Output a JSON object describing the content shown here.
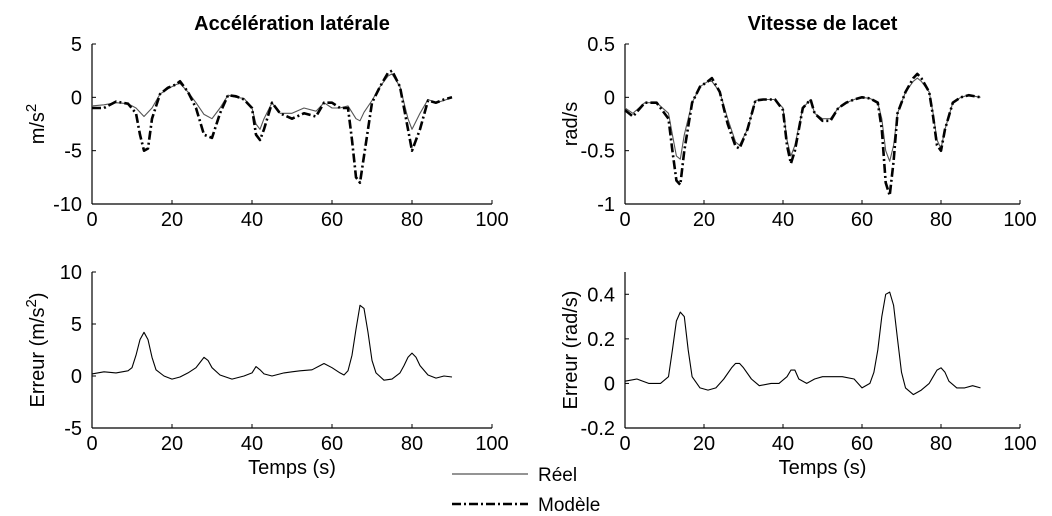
{
  "chart_data": [
    {
      "type": "line",
      "title": "Accélération latérale",
      "xlabel": "",
      "ylabel": "m/s",
      "ylabel_sup": "2",
      "xlim": [
        0,
        100
      ],
      "ylim": [
        -10,
        5
      ],
      "xticks": [
        0,
        20,
        40,
        60,
        80,
        100
      ],
      "yticks": [
        -10,
        -5,
        0,
        5
      ],
      "series": [
        {
          "name": "Réel",
          "style": "solid",
          "color": "#555555",
          "x": [
            0,
            3,
            6,
            9,
            11,
            13,
            15,
            17,
            19,
            21,
            22,
            24,
            26,
            28,
            30,
            32,
            34,
            36,
            38,
            40,
            41,
            42,
            43,
            45,
            47,
            50,
            53,
            56,
            58,
            60,
            62,
            64,
            65,
            66,
            67,
            68,
            70,
            72,
            74,
            75,
            77,
            79,
            80,
            82,
            84,
            86,
            88,
            90
          ],
          "y": [
            -0.8,
            -0.7,
            -0.5,
            -0.6,
            -1.0,
            -1.8,
            -1.0,
            0.3,
            0.8,
            1.2,
            1.3,
            0.5,
            -0.5,
            -1.6,
            -2.0,
            -1.0,
            0.2,
            0.0,
            -0.1,
            -1.0,
            -2.5,
            -3.0,
            -2.0,
            -0.5,
            -1.5,
            -1.5,
            -1.0,
            -1.3,
            -0.5,
            -1.0,
            -1.0,
            -0.8,
            -1.4,
            -2.0,
            -2.2,
            -1.4,
            -0.3,
            1.0,
            2.0,
            2.2,
            1.0,
            -2.0,
            -3.0,
            -1.5,
            -0.2,
            -0.5,
            -0.3,
            0.0
          ]
        },
        {
          "name": "Modèle",
          "style": "dashdot",
          "color": "#000000",
          "x": [
            0,
            3,
            6,
            9,
            11,
            12,
            13,
            14,
            15,
            17,
            19,
            21,
            22,
            24,
            26,
            28,
            30,
            32,
            34,
            36,
            38,
            40,
            41,
            42,
            43,
            45,
            47,
            50,
            53,
            56,
            58,
            60,
            62,
            64,
            65,
            66,
            67,
            68,
            70,
            72,
            74,
            75,
            77,
            79,
            80,
            82,
            84,
            86,
            88,
            90
          ],
          "y": [
            -1.0,
            -1.0,
            -0.4,
            -0.6,
            -1.5,
            -3.5,
            -5.0,
            -4.8,
            -2.0,
            0.3,
            0.9,
            1.2,
            1.5,
            0.5,
            -1.0,
            -3.5,
            -3.8,
            -1.5,
            0.2,
            0.1,
            -0.2,
            -1.0,
            -3.5,
            -4.0,
            -3.0,
            -0.5,
            -1.5,
            -2.0,
            -1.5,
            -1.8,
            -0.5,
            -0.5,
            -1.0,
            -1.0,
            -4.0,
            -7.5,
            -8.0,
            -5.5,
            -0.5,
            1.0,
            2.3,
            2.5,
            1.0,
            -3.0,
            -5.0,
            -3.0,
            -0.3,
            -0.5,
            -0.2,
            0.0
          ]
        }
      ]
    },
    {
      "type": "line",
      "title": "Vitesse de lacet",
      "xlabel": "",
      "ylabel": "rad/s",
      "xlim": [
        0,
        100
      ],
      "ylim": [
        -1,
        0.5
      ],
      "xticks": [
        0,
        20,
        40,
        60,
        80,
        100
      ],
      "yticks": [
        -1,
        -0.5,
        0,
        0.5
      ],
      "ytick_labels": [
        "-1",
        "-0.5",
        "0",
        "0.5"
      ],
      "series": [
        {
          "name": "Réel",
          "style": "solid",
          "color": "#555555",
          "x": [
            0,
            2,
            5,
            8,
            11,
            12,
            13,
            14,
            15,
            17,
            19,
            21,
            22,
            24,
            26,
            28,
            29,
            31,
            33,
            35,
            38,
            40,
            41,
            42,
            43,
            45,
            47,
            48,
            50,
            52,
            54,
            56,
            58,
            60,
            62,
            64,
            65,
            66,
            67,
            68,
            69,
            71,
            73,
            74,
            75,
            77,
            78,
            79,
            80,
            81,
            83,
            85,
            87,
            90
          ],
          "y": [
            -0.1,
            -0.15,
            -0.05,
            -0.05,
            -0.15,
            -0.35,
            -0.55,
            -0.58,
            -0.35,
            -0.05,
            0.1,
            0.15,
            0.15,
            0.05,
            -0.2,
            -0.42,
            -0.45,
            -0.3,
            -0.03,
            -0.02,
            -0.02,
            -0.1,
            -0.4,
            -0.55,
            -0.45,
            -0.1,
            -0.02,
            -0.15,
            -0.2,
            -0.2,
            -0.1,
            -0.05,
            -0.02,
            0.0,
            -0.01,
            -0.05,
            -0.2,
            -0.5,
            -0.6,
            -0.45,
            -0.15,
            0.05,
            0.15,
            0.18,
            0.15,
            0.05,
            -0.15,
            -0.4,
            -0.48,
            -0.3,
            -0.05,
            0.0,
            0.02,
            0.0
          ]
        },
        {
          "name": "Modèle",
          "style": "dashdot",
          "color": "#000000",
          "x": [
            0,
            2,
            5,
            8,
            11,
            12,
            13,
            14,
            15,
            17,
            19,
            21,
            22,
            24,
            26,
            28,
            29,
            31,
            33,
            35,
            38,
            40,
            41,
            42,
            43,
            45,
            47,
            48,
            50,
            52,
            54,
            56,
            58,
            60,
            62,
            64,
            65,
            66,
            67,
            68,
            69,
            71,
            73,
            74,
            75,
            77,
            78,
            79,
            80,
            81,
            83,
            85,
            87,
            90
          ],
          "y": [
            -0.12,
            -0.18,
            -0.05,
            -0.05,
            -0.2,
            -0.5,
            -0.78,
            -0.82,
            -0.5,
            -0.05,
            0.1,
            0.15,
            0.18,
            0.05,
            -0.25,
            -0.46,
            -0.48,
            -0.3,
            -0.03,
            -0.02,
            -0.02,
            -0.12,
            -0.45,
            -0.62,
            -0.5,
            -0.1,
            -0.02,
            -0.15,
            -0.22,
            -0.22,
            -0.1,
            -0.05,
            -0.02,
            0.0,
            -0.01,
            -0.05,
            -0.3,
            -0.8,
            -0.92,
            -0.6,
            -0.15,
            0.05,
            0.18,
            0.22,
            0.18,
            0.05,
            -0.18,
            -0.45,
            -0.5,
            -0.3,
            -0.05,
            0.0,
            0.02,
            0.0
          ]
        }
      ]
    },
    {
      "type": "line",
      "title": "",
      "xlabel": "Temps (s)",
      "ylabel": "Erreur (m/s",
      "ylabel_sup": "2",
      "ylabel_end": ")",
      "xlim": [
        0,
        100
      ],
      "ylim": [
        -5,
        10
      ],
      "xticks": [
        0,
        20,
        40,
        60,
        80,
        100
      ],
      "yticks": [
        -5,
        0,
        5,
        10
      ],
      "series": [
        {
          "name": "",
          "style": "solid",
          "color": "#000000",
          "x": [
            0,
            3,
            6,
            9,
            10,
            11,
            12,
            13,
            14,
            15,
            16,
            18,
            20,
            22,
            24,
            26,
            27,
            28,
            29,
            30,
            32,
            35,
            38,
            40,
            41,
            42,
            43,
            45,
            48,
            50,
            52,
            55,
            57,
            58,
            60,
            62,
            63,
            64,
            65,
            66,
            67,
            68,
            69,
            70,
            71,
            73,
            75,
            77,
            78,
            79,
            80,
            81,
            82,
            84,
            86,
            88,
            90
          ],
          "y": [
            0.2,
            0.4,
            0.3,
            0.5,
            0.8,
            2.0,
            3.5,
            4.2,
            3.5,
            1.8,
            0.6,
            0.0,
            -0.3,
            -0.1,
            0.3,
            0.8,
            1.3,
            1.8,
            1.5,
            0.8,
            0.1,
            -0.3,
            0.0,
            0.3,
            0.9,
            0.6,
            0.2,
            0.0,
            0.3,
            0.4,
            0.5,
            0.6,
            1.0,
            1.2,
            0.8,
            0.3,
            0.1,
            0.5,
            2.0,
            4.5,
            6.8,
            6.5,
            4.2,
            1.5,
            0.3,
            -0.4,
            -0.3,
            0.3,
            1.0,
            1.8,
            2.2,
            1.8,
            1.0,
            0.1,
            -0.2,
            0.0,
            -0.1
          ]
        }
      ]
    },
    {
      "type": "line",
      "title": "",
      "xlabel": "Temps (s)",
      "ylabel": "Erreur (rad/s)",
      "xlim": [
        0,
        100
      ],
      "ylim": [
        -0.2,
        0.5
      ],
      "xticks": [
        0,
        20,
        40,
        60,
        80,
        100
      ],
      "yticks": [
        -0.2,
        0,
        0.2,
        0.4
      ],
      "ytick_labels": [
        "-0.2",
        "0",
        "0.2",
        "0.4"
      ],
      "series": [
        {
          "name": "",
          "style": "solid",
          "color": "#000000",
          "x": [
            0,
            3,
            6,
            9,
            11,
            12,
            13,
            14,
            15,
            16,
            17,
            19,
            21,
            23,
            25,
            27,
            28,
            29,
            30,
            32,
            34,
            37,
            39,
            41,
            42,
            43,
            44,
            46,
            48,
            50,
            52,
            55,
            58,
            59,
            60,
            62,
            63,
            64,
            65,
            66,
            67,
            68,
            69,
            70,
            71,
            73,
            75,
            77,
            78,
            79,
            80,
            81,
            82,
            84,
            86,
            88,
            90
          ],
          "y": [
            0.01,
            0.02,
            0.0,
            0.0,
            0.03,
            0.15,
            0.28,
            0.32,
            0.3,
            0.15,
            0.03,
            -0.02,
            -0.03,
            -0.02,
            0.02,
            0.07,
            0.09,
            0.09,
            0.07,
            0.02,
            -0.01,
            0.0,
            0.0,
            0.03,
            0.06,
            0.06,
            0.02,
            0.0,
            0.02,
            0.03,
            0.03,
            0.03,
            0.02,
            0.0,
            -0.02,
            0.0,
            0.05,
            0.15,
            0.3,
            0.4,
            0.41,
            0.35,
            0.2,
            0.05,
            -0.02,
            -0.05,
            -0.03,
            0.0,
            0.03,
            0.06,
            0.07,
            0.05,
            0.01,
            -0.02,
            -0.02,
            -0.01,
            -0.02
          ]
        }
      ]
    }
  ],
  "legend": {
    "position": "bottom-center",
    "entries": [
      {
        "label": "Réel",
        "style": "solid",
        "color": "#555555"
      },
      {
        "label": "Modèle",
        "style": "dashdot",
        "color": "#000000"
      }
    ]
  }
}
